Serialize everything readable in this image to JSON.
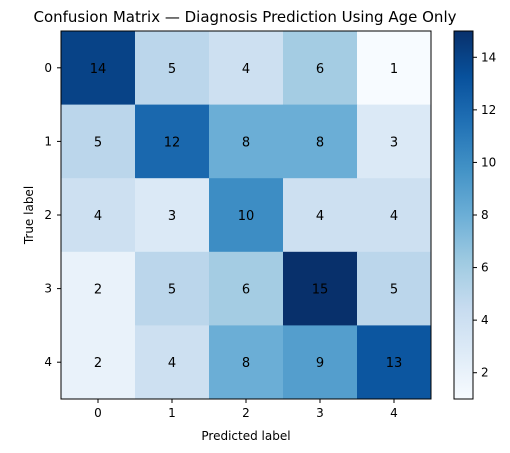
{
  "chart_data": {
    "type": "heatmap",
    "title": "Confusion Matrix — Diagnosis Prediction Using Age Only",
    "xlabel": "Predicted label",
    "ylabel": "True label",
    "x_categories": [
      "0",
      "1",
      "2",
      "3",
      "4"
    ],
    "y_categories": [
      "0",
      "1",
      "2",
      "3",
      "4"
    ],
    "matrix": [
      [
        14,
        5,
        4,
        6,
        1
      ],
      [
        5,
        12,
        8,
        8,
        3
      ],
      [
        4,
        3,
        10,
        4,
        4
      ],
      [
        2,
        5,
        6,
        15,
        5
      ],
      [
        2,
        4,
        8,
        9,
        13
      ]
    ],
    "colormap": "Blues",
    "color_range": [
      1,
      15
    ],
    "colorbar_ticks": [
      "2",
      "4",
      "6",
      "8",
      "10",
      "12",
      "14"
    ],
    "grid": false
  }
}
